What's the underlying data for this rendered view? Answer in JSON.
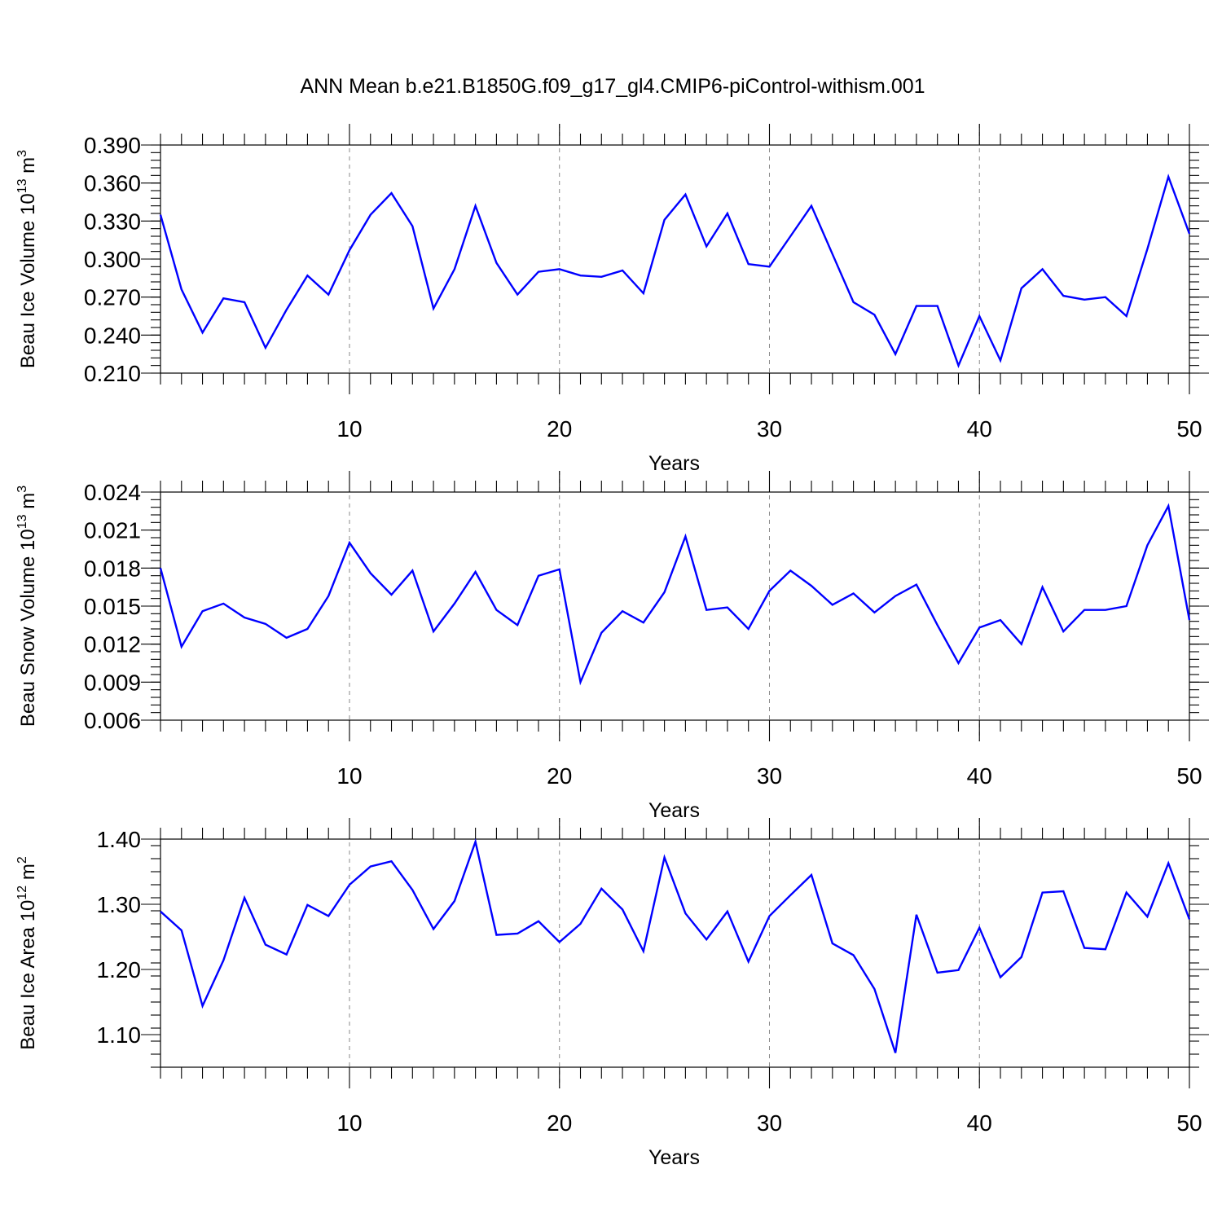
{
  "title": "ANN Mean b.e21.B1850G.f09_g17_gl4.CMIP6-piControl-withism.001",
  "colors": {
    "line": "#0000ff",
    "axis": "#000000",
    "grid": "#8a8a8a"
  },
  "chart_data": [
    {
      "type": "line",
      "ylabel_main": "Beau Ice Volume 10",
      "ylabel_exp": "13",
      "ylabel_unit": "m",
      "ylabel_unit_exp": "3",
      "xlabel": "Years",
      "xlim": [
        1,
        50
      ],
      "ylim": [
        0.21,
        0.39
      ],
      "yticks": [
        0.21,
        0.24,
        0.27,
        0.3,
        0.33,
        0.36,
        0.39
      ],
      "ytick_labels": [
        "0.210",
        "0.240",
        "0.270",
        "0.300",
        "0.330",
        "0.360",
        "0.390"
      ],
      "xticks": [
        10,
        20,
        30,
        40,
        50
      ],
      "xtick_labels": [
        "10",
        "20",
        "30",
        "40",
        "50"
      ],
      "grid_x": [
        10,
        20,
        30,
        40
      ],
      "grid": true,
      "series": [
        {
          "x": [
            1,
            2,
            3,
            4,
            5,
            6,
            7,
            8,
            9,
            10,
            11,
            12,
            13,
            14,
            15,
            16,
            17,
            18,
            19,
            20,
            21,
            22,
            23,
            24,
            25,
            26,
            27,
            28,
            29,
            30,
            31,
            32,
            33,
            34,
            35,
            36,
            37,
            38,
            39,
            40,
            41,
            42,
            43,
            44,
            45,
            46,
            47,
            48,
            49,
            50
          ],
          "values": [
            0.335,
            0.276,
            0.242,
            0.269,
            0.266,
            0.23,
            0.26,
            0.287,
            0.272,
            0.307,
            0.335,
            0.352,
            0.326,
            0.261,
            0.292,
            0.342,
            0.297,
            0.272,
            0.29,
            0.292,
            0.287,
            0.286,
            0.291,
            0.273,
            0.331,
            0.351,
            0.31,
            0.336,
            0.296,
            0.294,
            0.318,
            0.342,
            0.304,
            0.266,
            0.256,
            0.225,
            0.263,
            0.263,
            0.216,
            0.255,
            0.22,
            0.277,
            0.292,
            0.271,
            0.268,
            0.27,
            0.255,
            0.308,
            0.365,
            0.32
          ]
        }
      ]
    },
    {
      "type": "line",
      "ylabel_main": "Beau Snow Volume 10",
      "ylabel_exp": "13",
      "ylabel_unit": "m",
      "ylabel_unit_exp": "3",
      "xlabel": "Years",
      "xlim": [
        1,
        50
      ],
      "ylim": [
        0.006,
        0.024
      ],
      "yticks": [
        0.006,
        0.009,
        0.012,
        0.015,
        0.018,
        0.021,
        0.024
      ],
      "ytick_labels": [
        "0.006",
        "0.009",
        "0.012",
        "0.015",
        "0.018",
        "0.021",
        "0.024"
      ],
      "xticks": [
        10,
        20,
        30,
        40,
        50
      ],
      "xtick_labels": [
        "10",
        "20",
        "30",
        "40",
        "50"
      ],
      "grid_x": [
        10,
        20,
        30,
        40
      ],
      "grid": true,
      "series": [
        {
          "x": [
            1,
            2,
            3,
            4,
            5,
            6,
            7,
            8,
            9,
            10,
            11,
            12,
            13,
            14,
            15,
            16,
            17,
            18,
            19,
            20,
            21,
            22,
            23,
            24,
            25,
            26,
            27,
            28,
            29,
            30,
            31,
            32,
            33,
            34,
            35,
            36,
            37,
            38,
            39,
            40,
            41,
            42,
            43,
            44,
            45,
            46,
            47,
            48,
            49,
            50
          ],
          "values": [
            0.018,
            0.0118,
            0.0146,
            0.0152,
            0.0141,
            0.0136,
            0.0125,
            0.0132,
            0.0158,
            0.02,
            0.0176,
            0.0159,
            0.0178,
            0.013,
            0.0152,
            0.0177,
            0.0147,
            0.0135,
            0.0174,
            0.0179,
            0.009,
            0.0129,
            0.0146,
            0.0137,
            0.0161,
            0.0205,
            0.0147,
            0.0149,
            0.0132,
            0.0162,
            0.0178,
            0.0166,
            0.0151,
            0.016,
            0.0145,
            0.0158,
            0.0167,
            0.0135,
            0.0105,
            0.0133,
            0.0139,
            0.012,
            0.0165,
            0.013,
            0.0147,
            0.0147,
            0.015,
            0.0198,
            0.0229,
            0.0139
          ]
        }
      ]
    },
    {
      "type": "line",
      "ylabel_main": "Beau Ice Area 10",
      "ylabel_exp": "12",
      "ylabel_unit": "m",
      "ylabel_unit_exp": "2",
      "xlabel": "Years",
      "xlim": [
        1,
        50
      ],
      "ylim": [
        1.05,
        1.4
      ],
      "yticks": [
        1.1,
        1.2,
        1.3,
        1.4
      ],
      "ytick_labels": [
        "1.10",
        "1.20",
        "1.30",
        "1.40"
      ],
      "xticks": [
        10,
        20,
        30,
        40,
        50
      ],
      "xtick_labels": [
        "10",
        "20",
        "30",
        "40",
        "50"
      ],
      "grid_x": [
        10,
        20,
        30,
        40
      ],
      "grid": true,
      "series": [
        {
          "x": [
            1,
            2,
            3,
            4,
            5,
            6,
            7,
            8,
            9,
            10,
            11,
            12,
            13,
            14,
            15,
            16,
            17,
            18,
            19,
            20,
            21,
            22,
            23,
            24,
            25,
            26,
            27,
            28,
            29,
            30,
            31,
            32,
            33,
            34,
            35,
            36,
            37,
            38,
            39,
            40,
            41,
            42,
            43,
            44,
            45,
            46,
            47,
            48,
            49,
            50
          ],
          "values": [
            1.289,
            1.26,
            1.144,
            1.214,
            1.31,
            1.238,
            1.223,
            1.299,
            1.282,
            1.33,
            1.358,
            1.366,
            1.322,
            1.262,
            1.305,
            1.396,
            1.253,
            1.255,
            1.274,
            1.242,
            1.27,
            1.324,
            1.292,
            1.228,
            1.372,
            1.286,
            1.246,
            1.289,
            1.212,
            1.282,
            1.314,
            1.345,
            1.24,
            1.222,
            1.17,
            1.072,
            1.284,
            1.195,
            1.199,
            1.264,
            1.188,
            1.219,
            1.318,
            1.32,
            1.233,
            1.231,
            1.318,
            1.281,
            1.363,
            1.277
          ]
        }
      ]
    }
  ]
}
